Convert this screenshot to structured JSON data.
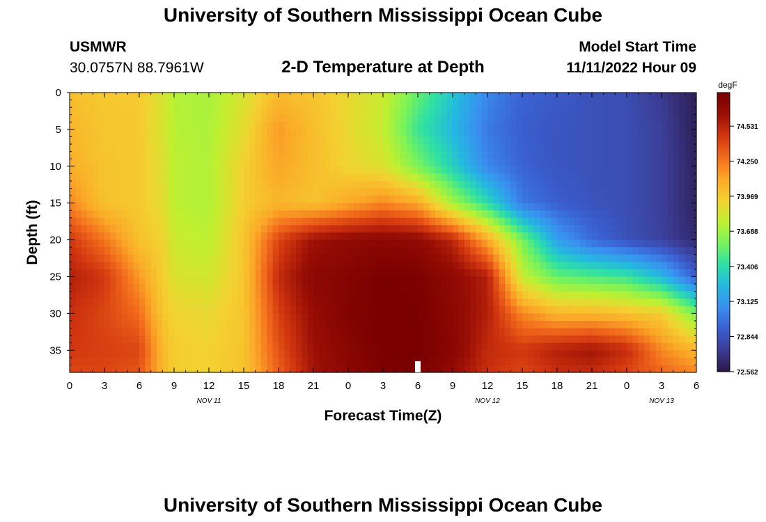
{
  "page": {
    "title": "University of Southern Mississippi Ocean Cube",
    "footer_title": "University of Southern Mississippi Ocean Cube"
  },
  "header": {
    "station": "USMWR",
    "coordinates": "30.0757N  88.7961W",
    "subtitle": "2-D Temperature at Depth",
    "model_label": "Model Start Time",
    "model_time": "11/11/2022 Hour 09"
  },
  "chart_data": {
    "type": "heatmap",
    "title": "2-D Temperature at Depth",
    "xlabel": "Forecast Time(Z)",
    "ylabel": "Depth (ft)",
    "x_ticks": [
      "0",
      "3",
      "6",
      "9",
      "12",
      "15",
      "18",
      "21",
      "0",
      "3",
      "6",
      "9",
      "12",
      "15",
      "18",
      "21",
      "0",
      "3",
      "6"
    ],
    "x_range_hours": [
      0,
      54
    ],
    "y_ticks": [
      "0",
      "5",
      "10",
      "15",
      "20",
      "25",
      "30",
      "35"
    ],
    "y_range_ft": [
      0,
      38
    ],
    "date_labels": [
      {
        "text": "NOV 11",
        "hour": 12
      },
      {
        "text": "NOV 12",
        "hour": 36
      },
      {
        "text": "NOV 13",
        "hour": 51
      }
    ],
    "current_time_hour": 30,
    "colorbar": {
      "unit": "degF",
      "min": 72.562,
      "max": 74.8,
      "tick_values": [
        74.531,
        74.25,
        73.969,
        73.688,
        73.406,
        73.125,
        72.844,
        72.562
      ],
      "tick_labels": [
        "74.531",
        "74.250",
        "73.969",
        "73.688",
        "73.406",
        "73.125",
        "72.844",
        "72.562"
      ],
      "colors": [
        "#2a1745",
        "#3b3c94",
        "#3a5fd0",
        "#3a8ff0",
        "#24b8e0",
        "#2ee0a4",
        "#78f35a",
        "#c0f030",
        "#f4d030",
        "#fba828",
        "#f26a1c",
        "#d0350f",
        "#9a0e05",
        "#7a0000"
      ]
    },
    "temperature_grid_degF": {
      "times_hours": [
        0,
        3,
        6,
        8,
        9,
        12,
        15,
        18,
        21,
        24,
        27,
        30,
        33,
        36,
        39,
        42,
        45,
        48,
        51,
        54
      ],
      "depths_ft": [
        0,
        5,
        10,
        15,
        20,
        25,
        30,
        35,
        38
      ],
      "values": [
        [
          74.02,
          73.97,
          73.97,
          73.84,
          73.74,
          73.71,
          73.84,
          74.03,
          73.99,
          73.9,
          73.8,
          73.55,
          73.3,
          73.05,
          72.92,
          72.88,
          72.84,
          72.82,
          72.72,
          72.6
        ],
        [
          74.05,
          73.98,
          73.97,
          73.84,
          73.75,
          73.72,
          73.88,
          74.15,
          74.02,
          73.9,
          73.78,
          73.45,
          73.25,
          73.0,
          72.9,
          72.86,
          72.84,
          72.82,
          72.75,
          72.6
        ],
        [
          74.08,
          73.99,
          73.97,
          73.86,
          73.76,
          73.73,
          73.94,
          74.12,
          74.02,
          73.92,
          73.85,
          73.6,
          73.35,
          73.05,
          72.92,
          72.86,
          72.84,
          72.82,
          72.75,
          72.62
        ],
        [
          74.2,
          74.0,
          73.97,
          73.88,
          73.76,
          73.73,
          73.95,
          74.05,
          74.0,
          74.1,
          74.2,
          74.1,
          73.7,
          73.4,
          73.0,
          72.9,
          72.85,
          72.82,
          72.75,
          72.62
        ],
        [
          74.45,
          74.25,
          74.0,
          73.93,
          73.8,
          73.76,
          73.98,
          74.4,
          74.62,
          74.68,
          74.7,
          74.68,
          74.52,
          74.1,
          73.6,
          73.15,
          72.95,
          72.84,
          72.76,
          72.65
        ],
        [
          74.55,
          74.45,
          74.15,
          73.95,
          73.85,
          73.82,
          73.98,
          74.5,
          74.7,
          74.74,
          74.8,
          74.78,
          74.68,
          74.55,
          73.78,
          73.55,
          73.5,
          73.45,
          73.25,
          72.9
        ],
        [
          74.48,
          74.4,
          74.28,
          73.98,
          73.93,
          73.9,
          73.99,
          74.42,
          74.65,
          74.76,
          74.8,
          74.8,
          74.7,
          74.55,
          74.2,
          74.05,
          74.05,
          74.0,
          73.95,
          73.6
        ],
        [
          74.45,
          74.42,
          74.4,
          74.05,
          73.95,
          73.93,
          73.99,
          74.36,
          74.62,
          74.72,
          74.8,
          74.8,
          74.72,
          74.5,
          74.45,
          74.55,
          74.6,
          74.5,
          74.2,
          74.05
        ],
        [
          74.4,
          74.4,
          74.35,
          74.05,
          73.95,
          73.93,
          73.99,
          74.32,
          74.6,
          74.7,
          74.78,
          74.8,
          74.66,
          74.48,
          74.4,
          74.48,
          74.5,
          74.4,
          74.3,
          74.2
        ]
      ]
    }
  }
}
